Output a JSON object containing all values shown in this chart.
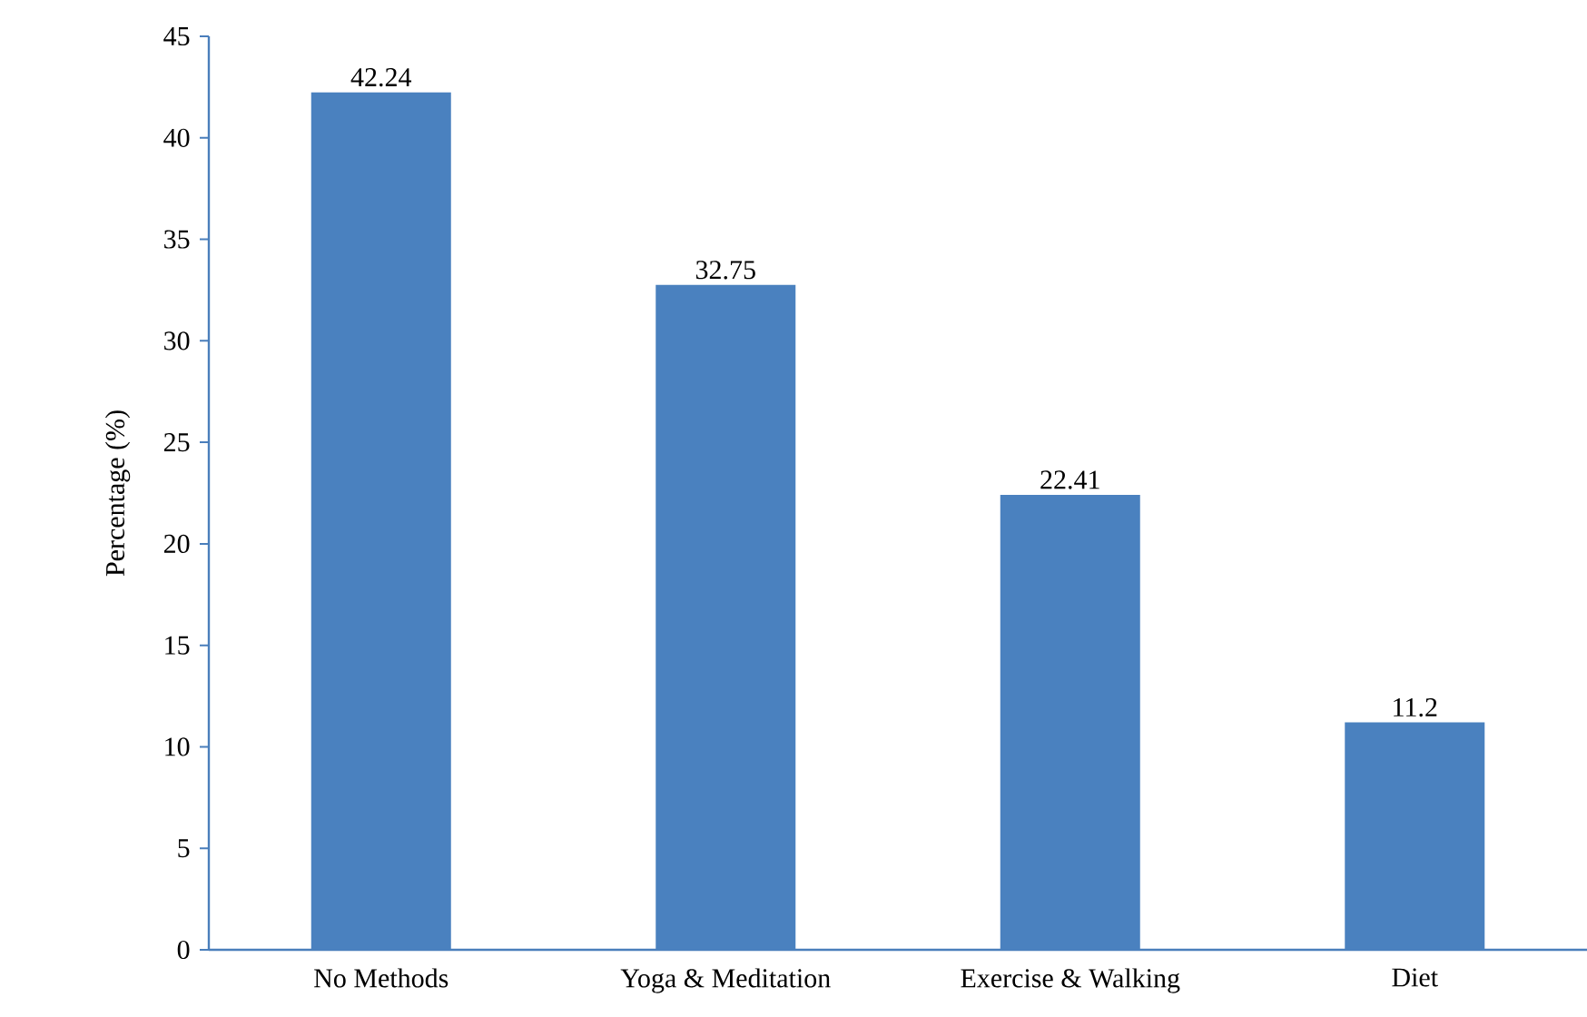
{
  "chart_data": {
    "type": "bar",
    "ylabel": "Percentage (%)",
    "categories": [
      "No Methods",
      "Yoga & Meditation",
      "Exercise & Walking",
      "Diet"
    ],
    "values": [
      42.24,
      32.75,
      22.41,
      11.2
    ],
    "color": "#4a81bf",
    "ylim": [
      0,
      45
    ],
    "yticks": [
      0,
      5,
      10,
      15,
      20,
      25,
      30,
      35,
      40,
      45
    ],
    "data_labels": true
  }
}
